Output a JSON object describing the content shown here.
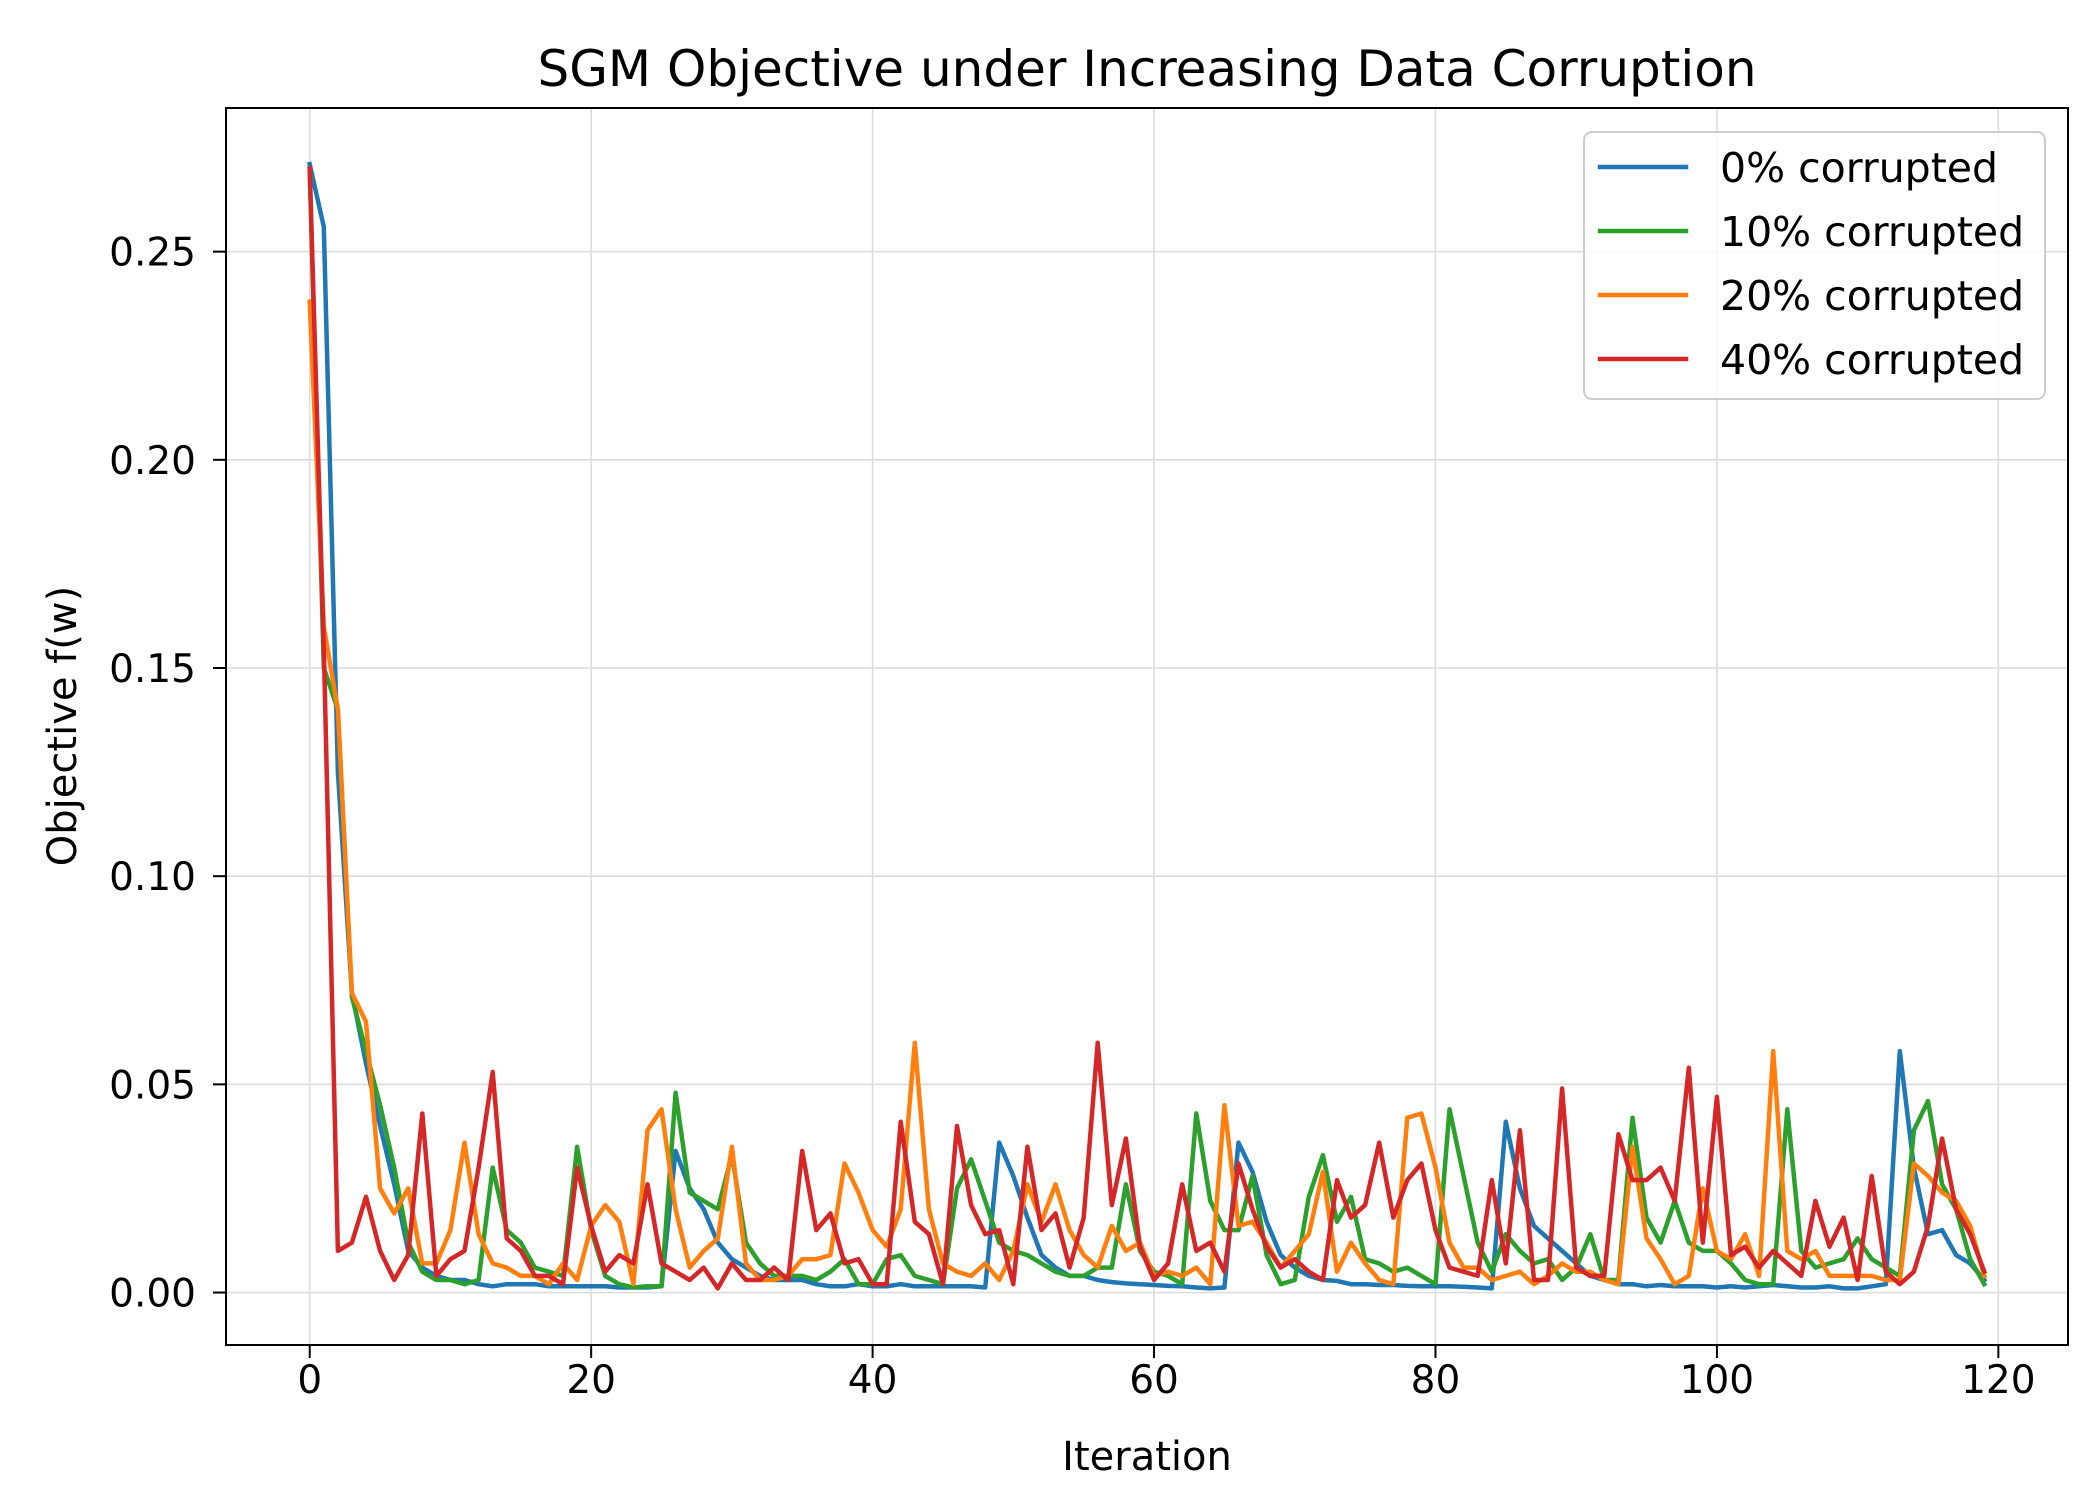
{
  "chart_data": {
    "type": "line",
    "title": "SGM Objective under Increasing Data Corruption",
    "xlabel": "Iteration",
    "ylabel": "Objective f(w)",
    "xlim": [
      -5.95,
      124.95
    ],
    "ylim": [
      -0.0126,
      0.2845
    ],
    "x_ticks": [
      0,
      20,
      40,
      60,
      80,
      100,
      120
    ],
    "x_tick_labels": [
      "0",
      "20",
      "40",
      "60",
      "80",
      "100",
      "120"
    ],
    "y_ticks": [
      0.0,
      0.05,
      0.1,
      0.15,
      0.2,
      0.25
    ],
    "y_tick_labels": [
      "0.00",
      "0.05",
      "0.10",
      "0.15",
      "0.20",
      "0.25"
    ],
    "grid": true,
    "legend_loc": "upper right",
    "x": [
      0,
      1,
      2,
      3,
      4,
      5,
      6,
      7,
      8,
      9,
      10,
      11,
      12,
      13,
      14,
      15,
      16,
      17,
      18,
      19,
      20,
      21,
      22,
      23,
      24,
      25,
      26,
      27,
      28,
      29,
      30,
      31,
      32,
      33,
      34,
      35,
      36,
      37,
      38,
      39,
      40,
      41,
      42,
      43,
      44,
      45,
      46,
      47,
      48,
      49,
      50,
      51,
      52,
      53,
      54,
      55,
      56,
      57,
      58,
      59,
      60,
      61,
      62,
      63,
      64,
      65,
      66,
      67,
      68,
      69,
      70,
      71,
      72,
      73,
      74,
      75,
      76,
      77,
      78,
      79,
      80,
      81,
      82,
      83,
      84,
      85,
      86,
      87,
      88,
      89,
      90,
      91,
      92,
      93,
      94,
      95,
      96,
      97,
      98,
      99,
      100,
      101,
      102,
      103,
      104,
      105,
      106,
      107,
      108,
      109,
      110,
      111,
      112,
      113,
      114,
      115,
      116,
      117,
      118,
      119
    ],
    "series": [
      {
        "name": "0% corrupted",
        "color": "#1f77b4",
        "values": [
          0.271,
          0.256,
          0.125,
          0.072,
          0.055,
          0.04,
          0.026,
          0.01,
          0.006,
          0.004,
          0.003,
          0.003,
          0.002,
          0.0015,
          0.002,
          0.002,
          0.002,
          0.0015,
          0.0015,
          0.0015,
          0.0015,
          0.0015,
          0.0012,
          0.0012,
          0.0012,
          0.0015,
          0.034,
          0.025,
          0.02,
          0.012,
          0.008,
          0.006,
          0.004,
          0.003,
          0.003,
          0.003,
          0.002,
          0.0015,
          0.0015,
          0.002,
          0.0015,
          0.0015,
          0.002,
          0.0015,
          0.0015,
          0.0015,
          0.0015,
          0.0015,
          0.0012,
          0.036,
          0.028,
          0.018,
          0.009,
          0.006,
          0.004,
          0.004,
          0.003,
          0.0025,
          0.0022,
          0.002,
          0.0018,
          0.0016,
          0.0015,
          0.0012,
          0.001,
          0.0012,
          0.036,
          0.029,
          0.017,
          0.009,
          0.006,
          0.004,
          0.003,
          0.0028,
          0.002,
          0.002,
          0.0018,
          0.0018,
          0.0016,
          0.0015,
          0.0015,
          0.0015,
          0.0014,
          0.0012,
          0.001,
          0.041,
          0.025,
          0.016,
          0.013,
          0.01,
          0.007,
          0.004,
          0.003,
          0.002,
          0.002,
          0.0015,
          0.0018,
          0.0015,
          0.0015,
          0.0015,
          0.0012,
          0.0015,
          0.0012,
          0.0015,
          0.0018,
          0.0015,
          0.0012,
          0.0012,
          0.0015,
          0.001,
          0.001,
          0.0015,
          0.002,
          0.058,
          0.03,
          0.014,
          0.015,
          0.009,
          0.007,
          0.003
        ]
      },
      {
        "name": "10% corrupted",
        "color": "#2ca02c",
        "values": [
          0.27,
          0.15,
          0.14,
          0.071,
          0.058,
          0.045,
          0.03,
          0.012,
          0.005,
          0.003,
          0.003,
          0.002,
          0.003,
          0.03,
          0.015,
          0.012,
          0.006,
          0.005,
          0.004,
          0.035,
          0.015,
          0.004,
          0.002,
          0.0012,
          0.0015,
          0.0015,
          0.048,
          0.024,
          0.022,
          0.02,
          0.033,
          0.012,
          0.007,
          0.004,
          0.004,
          0.004,
          0.003,
          0.005,
          0.008,
          0.002,
          0.002,
          0.008,
          0.009,
          0.004,
          0.003,
          0.002,
          0.025,
          0.032,
          0.022,
          0.012,
          0.01,
          0.009,
          0.007,
          0.005,
          0.004,
          0.004,
          0.006,
          0.006,
          0.026,
          0.01,
          0.005,
          0.004,
          0.002,
          0.043,
          0.022,
          0.015,
          0.015,
          0.028,
          0.009,
          0.002,
          0.003,
          0.023,
          0.033,
          0.017,
          0.023,
          0.008,
          0.007,
          0.005,
          0.006,
          0.004,
          0.002,
          0.044,
          0.028,
          0.012,
          0.005,
          0.014,
          0.01,
          0.007,
          0.008,
          0.003,
          0.006,
          0.014,
          0.003,
          0.003,
          0.042,
          0.018,
          0.012,
          0.022,
          0.012,
          0.01,
          0.01,
          0.007,
          0.003,
          0.002,
          0.002,
          0.044,
          0.01,
          0.006,
          0.007,
          0.008,
          0.013,
          0.008,
          0.006,
          0.004,
          0.039,
          0.046,
          0.026,
          0.02,
          0.008,
          0.002
        ]
      },
      {
        "name": "20% corrupted",
        "color": "#ff7f0e",
        "values": [
          0.238,
          0.16,
          0.14,
          0.072,
          0.065,
          0.025,
          0.019,
          0.025,
          0.007,
          0.007,
          0.015,
          0.036,
          0.014,
          0.007,
          0.006,
          0.004,
          0.004,
          0.002,
          0.007,
          0.003,
          0.016,
          0.021,
          0.017,
          0.002,
          0.039,
          0.044,
          0.02,
          0.006,
          0.01,
          0.013,
          0.035,
          0.007,
          0.003,
          0.003,
          0.004,
          0.008,
          0.008,
          0.009,
          0.031,
          0.024,
          0.015,
          0.011,
          0.02,
          0.06,
          0.02,
          0.007,
          0.005,
          0.004,
          0.007,
          0.003,
          0.01,
          0.026,
          0.017,
          0.026,
          0.015,
          0.009,
          0.006,
          0.016,
          0.01,
          0.012,
          0.004,
          0.005,
          0.004,
          0.006,
          0.002,
          0.045,
          0.016,
          0.017,
          0.012,
          0.006,
          0.01,
          0.014,
          0.029,
          0.005,
          0.012,
          0.007,
          0.003,
          0.002,
          0.042,
          0.043,
          0.03,
          0.012,
          0.006,
          0.006,
          0.003,
          0.004,
          0.005,
          0.002,
          0.004,
          0.007,
          0.005,
          0.005,
          0.003,
          0.002,
          0.035,
          0.013,
          0.008,
          0.002,
          0.004,
          0.025,
          0.01,
          0.008,
          0.014,
          0.004,
          0.058,
          0.01,
          0.008,
          0.01,
          0.004,
          0.004,
          0.004,
          0.004,
          0.003,
          0.003,
          0.031,
          0.028,
          0.024,
          0.022,
          0.016,
          0.004
        ]
      },
      {
        "name": "40% corrupted",
        "color": "#d62728",
        "values": [
          0.27,
          0.155,
          0.01,
          0.012,
          0.023,
          0.01,
          0.003,
          0.009,
          0.043,
          0.004,
          0.008,
          0.01,
          0.03,
          0.053,
          0.013,
          0.01,
          0.004,
          0.004,
          0.002,
          0.03,
          0.016,
          0.005,
          0.009,
          0.007,
          0.026,
          0.007,
          0.005,
          0.003,
          0.006,
          0.001,
          0.007,
          0.003,
          0.003,
          0.006,
          0.003,
          0.034,
          0.015,
          0.019,
          0.007,
          0.008,
          0.002,
          0.002,
          0.041,
          0.017,
          0.014,
          0.002,
          0.04,
          0.021,
          0.014,
          0.015,
          0.002,
          0.035,
          0.015,
          0.019,
          0.006,
          0.018,
          0.06,
          0.021,
          0.037,
          0.011,
          0.003,
          0.007,
          0.026,
          0.01,
          0.012,
          0.005,
          0.031,
          0.02,
          0.011,
          0.006,
          0.008,
          0.005,
          0.003,
          0.027,
          0.018,
          0.021,
          0.036,
          0.018,
          0.027,
          0.031,
          0.015,
          0.006,
          0.005,
          0.004,
          0.027,
          0.007,
          0.039,
          0.003,
          0.003,
          0.049,
          0.006,
          0.004,
          0.004,
          0.038,
          0.027,
          0.027,
          0.03,
          0.022,
          0.054,
          0.012,
          0.047,
          0.009,
          0.011,
          0.006,
          0.01,
          0.007,
          0.004,
          0.022,
          0.011,
          0.018,
          0.003,
          0.028,
          0.005,
          0.002,
          0.005,
          0.016,
          0.037,
          0.02,
          0.014,
          0.005
        ]
      }
    ]
  }
}
